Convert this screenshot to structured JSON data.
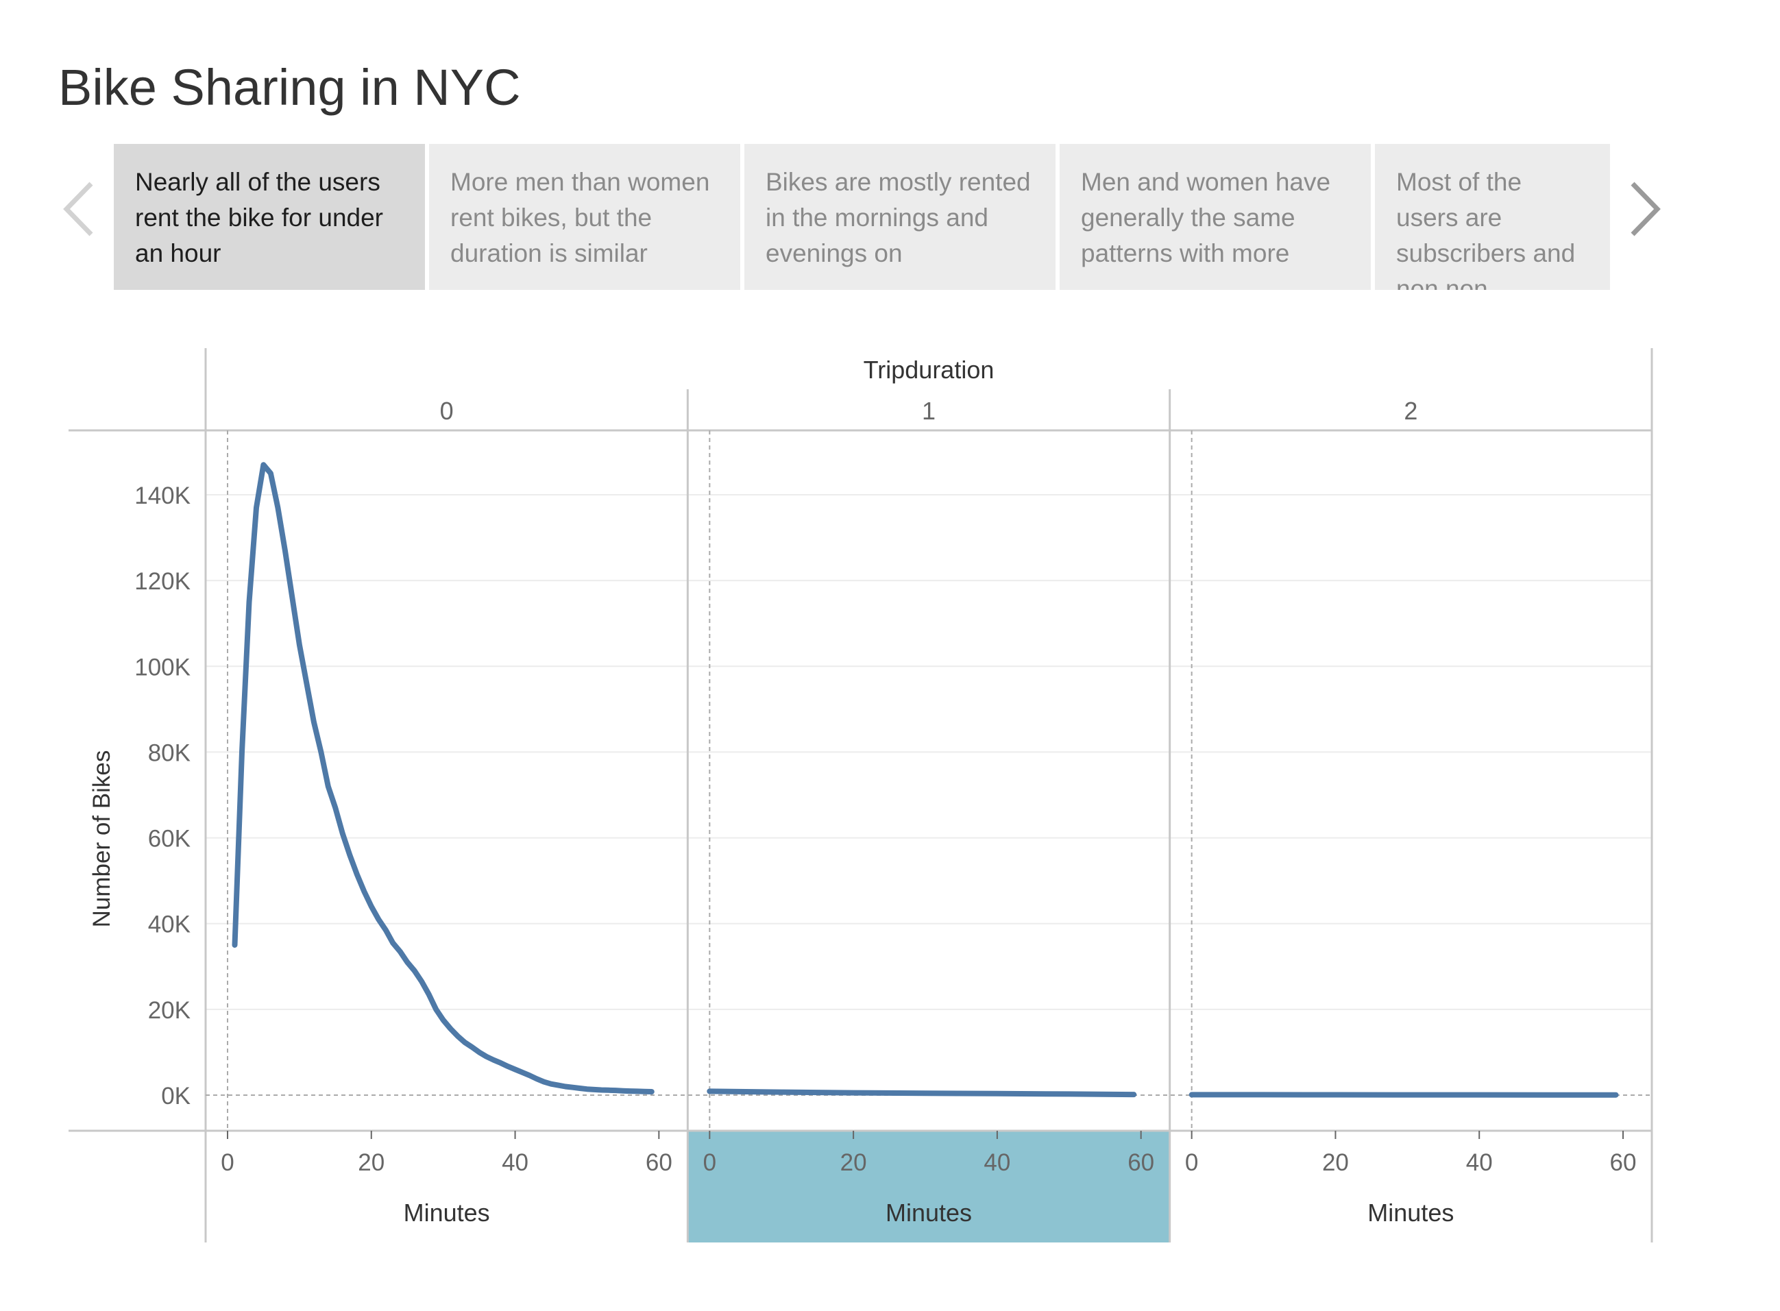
{
  "title": "Bike Sharing in NYC",
  "story_points": [
    {
      "text": "Nearly all of the users rent the bike for under an hour",
      "active": true
    },
    {
      "text": "More men than women rent bikes, but the duration is similar",
      "active": false
    },
    {
      "text": "Bikes are mostly rented in the mornings and evenings on",
      "active": false
    },
    {
      "text": "Men and women have generally the same patterns with more",
      "active": false
    },
    {
      "text": "Most of the users are subscribers and non non subscribed",
      "active": false
    }
  ],
  "icons": {
    "prev": "chevron-left-icon",
    "next": "chevron-right-icon"
  },
  "colors": {
    "line": "#4e79a7",
    "highlight": "#8dc3d1",
    "text": "#333333",
    "axis_text": "#666666"
  },
  "chart_data": {
    "type": "line",
    "column_header": "Tripduration",
    "panels": [
      {
        "label": "0",
        "x": [
          1,
          2,
          3,
          4,
          5,
          6,
          7,
          8,
          9,
          10,
          11,
          12,
          13,
          14,
          15,
          16,
          17,
          18,
          19,
          20,
          21,
          22,
          23,
          24,
          25,
          26,
          27,
          28,
          29,
          30,
          31,
          32,
          33,
          34,
          35,
          36,
          37,
          38,
          39,
          40,
          41,
          42,
          43,
          44,
          45,
          46,
          47,
          48,
          49,
          50,
          51,
          52,
          53,
          54,
          55,
          56,
          57,
          58,
          59
        ],
        "values": [
          35000,
          80000,
          115000,
          137000,
          147000,
          145000,
          137000,
          127000,
          116000,
          105000,
          96000,
          87000,
          80000,
          72000,
          67000,
          61000,
          56000,
          51500,
          47500,
          44000,
          41000,
          38500,
          35500,
          33500,
          31000,
          29000,
          26500,
          23500,
          20000,
          17500,
          15500,
          13800,
          12300,
          11200,
          10000,
          9000,
          8200,
          7500,
          6700,
          6000,
          5300,
          4600,
          3800,
          3100,
          2600,
          2300,
          2000,
          1800,
          1600,
          1400,
          1300,
          1200,
          1150,
          1100,
          1000,
          950,
          900,
          850,
          800
        ],
        "highlighted": false
      },
      {
        "label": "1",
        "x": [
          0,
          10,
          20,
          30,
          40,
          50,
          59
        ],
        "values": [
          900,
          700,
          550,
          450,
          350,
          250,
          150
        ],
        "highlighted": true
      },
      {
        "label": "2",
        "x": [
          0,
          10,
          20,
          30,
          40,
          50,
          59
        ],
        "values": [
          100,
          90,
          80,
          70,
          60,
          50,
          40
        ],
        "highlighted": false
      }
    ],
    "x_ticks": [
      0,
      20,
      40,
      60
    ],
    "y_ticks": [
      0,
      20000,
      40000,
      60000,
      80000,
      100000,
      120000,
      140000
    ],
    "y_tick_labels": [
      "0K",
      "20K",
      "40K",
      "60K",
      "80K",
      "100K",
      "120K",
      "140K"
    ],
    "xlabel": "Minutes",
    "ylabel": "Number of Bikes",
    "ylim": [
      -8000,
      155000
    ],
    "xlim": [
      -1,
      62
    ],
    "grid": true
  }
}
